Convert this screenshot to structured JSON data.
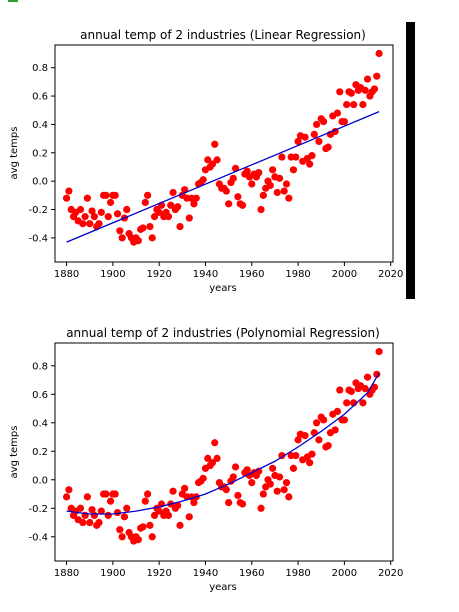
{
  "colors": {
    "points": "#ff0000",
    "fit_line": "#0000cc",
    "scrollbar": "#000000"
  },
  "chart_data": [
    {
      "type": "scatter",
      "title": "annual temp of 2 industries (Linear Regression)",
      "xlabel": "years",
      "ylabel": "avg temps",
      "xlim": [
        1875,
        2021
      ],
      "ylim": [
        -0.57,
        0.96
      ],
      "xticks": [
        1880,
        1900,
        1920,
        1940,
        1960,
        1980,
        2000,
        2020
      ],
      "yticks": [
        -0.4,
        -0.2,
        0.0,
        0.2,
        0.4,
        0.6,
        0.8
      ],
      "grid": false,
      "series": [
        {
          "kind": "points",
          "x": [
            1880,
            1881,
            1882,
            1883,
            1884,
            1885,
            1886,
            1887,
            1888,
            1889,
            1890,
            1891,
            1892,
            1893,
            1894,
            1895,
            1896,
            1897,
            1898,
            1899,
            1900,
            1901,
            1902,
            1903,
            1904,
            1905,
            1906,
            1907,
            1908,
            1909,
            1910,
            1911,
            1912,
            1913,
            1914,
            1915,
            1916,
            1917,
            1918,
            1919,
            1920,
            1921,
            1922,
            1923,
            1924,
            1925,
            1926,
            1927,
            1928,
            1929,
            1930,
            1931,
            1932,
            1933,
            1934,
            1935,
            1936,
            1937,
            1938,
            1939,
            1940,
            1941,
            1942,
            1943,
            1944,
            1945,
            1946,
            1947,
            1948,
            1949,
            1950,
            1951,
            1952,
            1953,
            1954,
            1955,
            1956,
            1957,
            1958,
            1959,
            1960,
            1961,
            1962,
            1963,
            1964,
            1965,
            1966,
            1967,
            1968,
            1969,
            1970,
            1971,
            1972,
            1973,
            1974,
            1975,
            1976,
            1977,
            1978,
            1979,
            1980,
            1981,
            1982,
            1983,
            1984,
            1985,
            1986,
            1987,
            1988,
            1989,
            1990,
            1991,
            1992,
            1993,
            1994,
            1995,
            1996,
            1997,
            1998,
            1999,
            2000,
            2001,
            2002,
            2003,
            2004,
            2005,
            2006,
            2007,
            2008,
            2009,
            2010,
            2011,
            2012,
            2013,
            2014,
            2015
          ],
          "y": [
            -0.12,
            -0.07,
            -0.2,
            -0.25,
            -0.22,
            -0.28,
            -0.2,
            -0.3,
            -0.25,
            -0.12,
            -0.3,
            -0.21,
            -0.25,
            -0.32,
            -0.3,
            -0.22,
            -0.1,
            -0.1,
            -0.25,
            -0.15,
            -0.1,
            -0.1,
            -0.23,
            -0.35,
            -0.4,
            -0.26,
            -0.2,
            -0.37,
            -0.4,
            -0.43,
            -0.4,
            -0.42,
            -0.34,
            -0.33,
            -0.15,
            -0.1,
            -0.32,
            -0.4,
            -0.25,
            -0.2,
            -0.22,
            -0.17,
            -0.25,
            -0.22,
            -0.25,
            -0.17,
            -0.08,
            -0.2,
            -0.18,
            -0.32,
            -0.1,
            -0.06,
            -0.12,
            -0.26,
            -0.12,
            -0.16,
            -0.12,
            -0.02,
            -0.01,
            0.01,
            0.08,
            0.15,
            0.1,
            0.12,
            0.26,
            0.15,
            -0.02,
            -0.05,
            -0.05,
            -0.07,
            -0.16,
            -0.01,
            0.02,
            0.09,
            -0.11,
            -0.16,
            -0.17,
            0.05,
            0.07,
            0.03,
            -0.02,
            0.05,
            0.03,
            0.06,
            -0.2,
            -0.1,
            -0.05,
            0.0,
            -0.03,
            0.08,
            0.03,
            -0.08,
            0.02,
            0.17,
            -0.07,
            -0.02,
            -0.12,
            0.17,
            0.08,
            0.17,
            0.28,
            0.32,
            0.14,
            0.31,
            0.16,
            0.12,
            0.18,
            0.33,
            0.4,
            0.28,
            0.44,
            0.42,
            0.23,
            0.24,
            0.33,
            0.46,
            0.35,
            0.48,
            0.63,
            0.42,
            0.42,
            0.54,
            0.63,
            0.62,
            0.54,
            0.68,
            0.64,
            0.66,
            0.54,
            0.64,
            0.72,
            0.6,
            0.63,
            0.65,
            0.74,
            0.9
          ]
        },
        {
          "kind": "line",
          "x": [
            1880,
            2015
          ],
          "y": [
            -0.43,
            0.49
          ]
        }
      ]
    },
    {
      "type": "scatter",
      "title": "annual temp of 2 industries (Polynomial Regression)",
      "xlabel": "years",
      "ylabel": "avg temps",
      "xlim": [
        1875,
        2021
      ],
      "ylim": [
        -0.57,
        0.96
      ],
      "xticks": [
        1880,
        1900,
        1920,
        1940,
        1960,
        1980,
        2000,
        2020
      ],
      "yticks": [
        -0.4,
        -0.2,
        0.0,
        0.2,
        0.4,
        0.6,
        0.8
      ],
      "grid": false,
      "series": [
        {
          "kind": "points",
          "x": [
            1880,
            1881,
            1882,
            1883,
            1884,
            1885,
            1886,
            1887,
            1888,
            1889,
            1890,
            1891,
            1892,
            1893,
            1894,
            1895,
            1896,
            1897,
            1898,
            1899,
            1900,
            1901,
            1902,
            1903,
            1904,
            1905,
            1906,
            1907,
            1908,
            1909,
            1910,
            1911,
            1912,
            1913,
            1914,
            1915,
            1916,
            1917,
            1918,
            1919,
            1920,
            1921,
            1922,
            1923,
            1924,
            1925,
            1926,
            1927,
            1928,
            1929,
            1930,
            1931,
            1932,
            1933,
            1934,
            1935,
            1936,
            1937,
            1938,
            1939,
            1940,
            1941,
            1942,
            1943,
            1944,
            1945,
            1946,
            1947,
            1948,
            1949,
            1950,
            1951,
            1952,
            1953,
            1954,
            1955,
            1956,
            1957,
            1958,
            1959,
            1960,
            1961,
            1962,
            1963,
            1964,
            1965,
            1966,
            1967,
            1968,
            1969,
            1970,
            1971,
            1972,
            1973,
            1974,
            1975,
            1976,
            1977,
            1978,
            1979,
            1980,
            1981,
            1982,
            1983,
            1984,
            1985,
            1986,
            1987,
            1988,
            1989,
            1990,
            1991,
            1992,
            1993,
            1994,
            1995,
            1996,
            1997,
            1998,
            1999,
            2000,
            2001,
            2002,
            2003,
            2004,
            2005,
            2006,
            2007,
            2008,
            2009,
            2010,
            2011,
            2012,
            2013,
            2014,
            2015
          ],
          "y": [
            -0.12,
            -0.07,
            -0.2,
            -0.25,
            -0.22,
            -0.28,
            -0.2,
            -0.3,
            -0.25,
            -0.12,
            -0.3,
            -0.21,
            -0.25,
            -0.32,
            -0.3,
            -0.22,
            -0.1,
            -0.1,
            -0.25,
            -0.15,
            -0.1,
            -0.1,
            -0.23,
            -0.35,
            -0.4,
            -0.26,
            -0.2,
            -0.37,
            -0.4,
            -0.43,
            -0.4,
            -0.42,
            -0.34,
            -0.33,
            -0.15,
            -0.1,
            -0.32,
            -0.4,
            -0.25,
            -0.2,
            -0.22,
            -0.17,
            -0.25,
            -0.22,
            -0.25,
            -0.17,
            -0.08,
            -0.2,
            -0.18,
            -0.32,
            -0.1,
            -0.06,
            -0.12,
            -0.26,
            -0.12,
            -0.16,
            -0.12,
            -0.02,
            -0.01,
            0.01,
            0.08,
            0.15,
            0.1,
            0.12,
            0.26,
            0.15,
            -0.02,
            -0.05,
            -0.05,
            -0.07,
            -0.16,
            -0.01,
            0.02,
            0.09,
            -0.11,
            -0.16,
            -0.17,
            0.05,
            0.07,
            0.03,
            -0.02,
            0.05,
            0.03,
            0.06,
            -0.2,
            -0.1,
            -0.05,
            0.0,
            -0.03,
            0.08,
            0.03,
            -0.08,
            0.02,
            0.17,
            -0.07,
            -0.02,
            -0.12,
            0.17,
            0.08,
            0.17,
            0.28,
            0.32,
            0.14,
            0.31,
            0.16,
            0.12,
            0.18,
            0.33,
            0.4,
            0.28,
            0.44,
            0.42,
            0.23,
            0.24,
            0.33,
            0.46,
            0.35,
            0.48,
            0.63,
            0.42,
            0.42,
            0.54,
            0.63,
            0.62,
            0.54,
            0.68,
            0.64,
            0.66,
            0.54,
            0.64,
            0.72,
            0.6,
            0.63,
            0.65,
            0.74,
            0.9
          ]
        },
        {
          "kind": "line",
          "x": [
            1880,
            1890,
            1900,
            1910,
            1920,
            1930,
            1940,
            1950,
            1960,
            1970,
            1980,
            1990,
            2000,
            2010,
            2015
          ],
          "y": [
            -0.22,
            -0.24,
            -0.24,
            -0.22,
            -0.19,
            -0.15,
            -0.1,
            -0.03,
            0.05,
            0.13,
            0.23,
            0.34,
            0.46,
            0.61,
            0.75
          ]
        }
      ]
    }
  ]
}
